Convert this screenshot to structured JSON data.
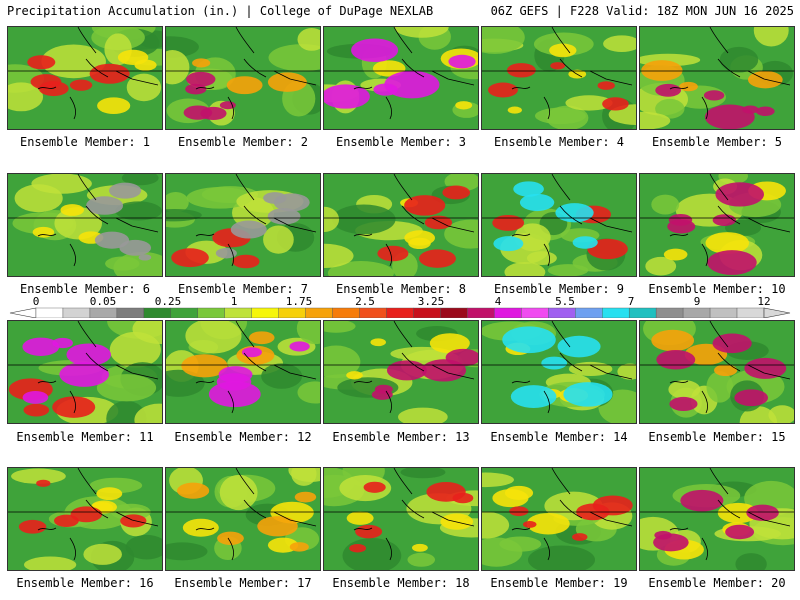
{
  "header": {
    "left": "Precipitation Accumulation (in.) | College of DuPage NEXLAB",
    "right": "06Z GEFS | F228 Valid: 18Z MON JUN 16 2025"
  },
  "panels": [
    {
      "label": "Ensemble Member: 1",
      "blobs": [
        {
          "c": "#f6e30a",
          "r": 0.3
        },
        {
          "c": "#e8201c",
          "r": 0.45
        }
      ]
    },
    {
      "label": "Ensemble Member: 2",
      "blobs": [
        {
          "c": "#f6a20a",
          "r": 0.4
        },
        {
          "c": "#c1116a",
          "r": 0.6
        }
      ]
    },
    {
      "label": "Ensemble Member: 3",
      "blobs": [
        {
          "c": "#f6e30a",
          "r": 0.35
        },
        {
          "c": "#e017e0",
          "r": 0.8
        }
      ]
    },
    {
      "label": "Ensemble Member: 4",
      "blobs": [
        {
          "c": "#f6e30a",
          "r": 0.3
        },
        {
          "c": "#e8201c",
          "r": 0.4
        }
      ]
    },
    {
      "label": "Ensemble Member: 5",
      "blobs": [
        {
          "c": "#f6a20a",
          "r": 0.4
        },
        {
          "c": "#c1116a",
          "r": 0.7
        }
      ]
    },
    {
      "label": "Ensemble Member: 6",
      "blobs": [
        {
          "c": "#f6e30a",
          "r": 0.5
        },
        {
          "c": "#999999",
          "r": 0.3
        }
      ]
    },
    {
      "label": "Ensemble Member: 7",
      "blobs": [
        {
          "c": "#e8201c",
          "r": 0.5
        },
        {
          "c": "#999999",
          "r": 0.4
        }
      ]
    },
    {
      "label": "Ensemble Member: 8",
      "blobs": [
        {
          "c": "#f6e30a",
          "r": 0.5
        },
        {
          "c": "#e8201c",
          "r": 0.35
        }
      ]
    },
    {
      "label": "Ensemble Member: 9",
      "blobs": [
        {
          "c": "#e8201c",
          "r": 0.55
        },
        {
          "c": "#27e0f0",
          "r": 0.7
        }
      ]
    },
    {
      "label": "Ensemble Member: 10",
      "blobs": [
        {
          "c": "#f6e30a",
          "r": 0.5
        },
        {
          "c": "#c1116a",
          "r": 0.6
        }
      ]
    },
    {
      "label": "Ensemble Member: 11",
      "blobs": [
        {
          "c": "#e8201c",
          "r": 0.6
        },
        {
          "c": "#e017e0",
          "r": 0.75
        }
      ]
    },
    {
      "label": "Ensemble Member: 12",
      "blobs": [
        {
          "c": "#f6a20a",
          "r": 0.55
        },
        {
          "c": "#e017e0",
          "r": 0.7
        }
      ]
    },
    {
      "label": "Ensemble Member: 13",
      "blobs": [
        {
          "c": "#f6e30a",
          "r": 0.45
        },
        {
          "c": "#c1116a",
          "r": 0.45
        }
      ]
    },
    {
      "label": "Ensemble Member: 14",
      "blobs": [
        {
          "c": "#f6e30a",
          "r": 0.45
        },
        {
          "c": "#27e0f0",
          "r": 0.75
        }
      ]
    },
    {
      "label": "Ensemble Member: 15",
      "blobs": [
        {
          "c": "#f6a20a",
          "r": 0.5
        },
        {
          "c": "#c1116a",
          "r": 0.55
        }
      ]
    },
    {
      "label": "Ensemble Member: 16",
      "blobs": [
        {
          "c": "#f6e30a",
          "r": 0.45
        },
        {
          "c": "#e8201c",
          "r": 0.4
        }
      ]
    },
    {
      "label": "Ensemble Member: 17",
      "blobs": [
        {
          "c": "#f6e30a",
          "r": 0.5
        },
        {
          "c": "#f6a20a",
          "r": 0.35
        }
      ]
    },
    {
      "label": "Ensemble Member: 18",
      "blobs": [
        {
          "c": "#f6e30a",
          "r": 0.45
        },
        {
          "c": "#e8201c",
          "r": 0.3
        }
      ]
    },
    {
      "label": "Ensemble Member: 19",
      "blobs": [
        {
          "c": "#f6e30a",
          "r": 0.45
        },
        {
          "c": "#e8201c",
          "r": 0.35
        }
      ]
    },
    {
      "label": "Ensemble Member: 20",
      "blobs": [
        {
          "c": "#f6e30a",
          "r": 0.45
        },
        {
          "c": "#c1116a",
          "r": 0.5
        }
      ]
    }
  ],
  "legend": {
    "ticks": [
      "0",
      "0.05",
      "0.25",
      "1",
      "1.75",
      "2.5",
      "3.25",
      "4",
      "5.5",
      "7",
      "9",
      "12"
    ],
    "colors": [
      "#ffffff",
      "#d3d3d3",
      "#a9a9a9",
      "#7d7d7d",
      "#2f8a2f",
      "#3fa33a",
      "#7ac83a",
      "#bfe23a",
      "#f6f60a",
      "#f6d00a",
      "#f6a20a",
      "#f67c0a",
      "#f0501c",
      "#e8201c",
      "#c8101c",
      "#9b0a1c",
      "#c1116a",
      "#e017e0",
      "#f04bf0",
      "#a060f0",
      "#6ea0f0",
      "#27e0f0",
      "#20c0c0",
      "#8f8f8f",
      "#a8a8a8",
      "#c0c0c0",
      "#d8d8d8"
    ]
  }
}
